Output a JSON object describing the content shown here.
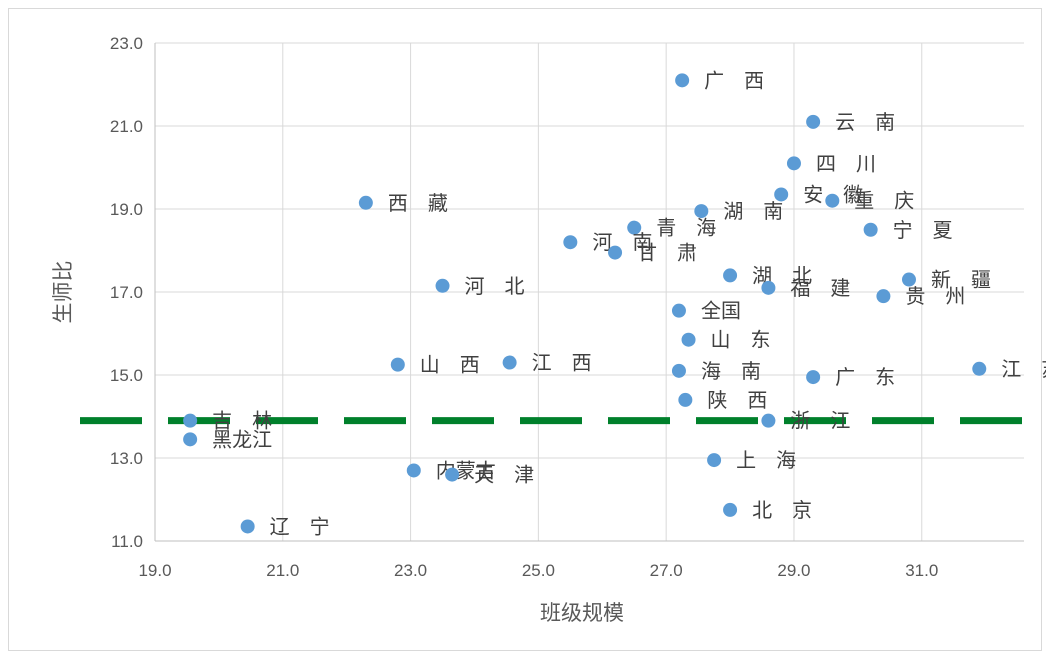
{
  "chart_data": {
    "type": "scatter",
    "xlabel": "班级规模",
    "ylabel": "生师比",
    "xlim": [
      19.0,
      32.6
    ],
    "ylim": [
      11.0,
      23.0
    ],
    "xticks": [
      19.0,
      21.0,
      23.0,
      25.0,
      27.0,
      29.0,
      31.0
    ],
    "yticks": [
      11.0,
      13.0,
      15.0,
      17.0,
      19.0,
      21.0,
      23.0
    ],
    "xtick_labels": [
      "19.0",
      "21.0",
      "23.0",
      "25.0",
      "27.0",
      "29.0",
      "31.0"
    ],
    "ytick_labels": [
      "11.0",
      "13.0",
      "15.0",
      "17.0",
      "19.0",
      "21.0",
      "23.0"
    ],
    "grid": true,
    "marker_color": "#5b9bd5",
    "reference_line": {
      "y": 13.9,
      "color": "#00802b",
      "style": "dashed"
    },
    "points": [
      {
        "label": "广　西",
        "x": 27.25,
        "y": 22.1
      },
      {
        "label": "云　南",
        "x": 29.3,
        "y": 21.1
      },
      {
        "label": "四　川",
        "x": 29.0,
        "y": 20.1
      },
      {
        "label": "安　徽",
        "x": 28.8,
        "y": 19.35
      },
      {
        "label": "重　庆",
        "x": 29.6,
        "y": 19.2
      },
      {
        "label": "西　藏",
        "x": 22.3,
        "y": 19.15
      },
      {
        "label": "湖　南",
        "x": 27.55,
        "y": 18.95
      },
      {
        "label": "青　海",
        "x": 26.5,
        "y": 18.55
      },
      {
        "label": "宁　夏",
        "x": 30.2,
        "y": 18.5
      },
      {
        "label": "河　南",
        "x": 25.5,
        "y": 18.2
      },
      {
        "label": "甘　肃",
        "x": 26.2,
        "y": 17.95
      },
      {
        "label": "湖　北",
        "x": 28.0,
        "y": 17.4
      },
      {
        "label": "新　疆",
        "x": 30.8,
        "y": 17.3
      },
      {
        "label": "河　北",
        "x": 23.5,
        "y": 17.15
      },
      {
        "label": "福　建",
        "x": 28.6,
        "y": 17.1
      },
      {
        "label": "贵　州",
        "x": 30.4,
        "y": 16.9
      },
      {
        "label": "全国",
        "x": 27.2,
        "y": 16.55
      },
      {
        "label": "山　东",
        "x": 27.35,
        "y": 15.85
      },
      {
        "label": "山　西",
        "x": 22.8,
        "y": 15.25
      },
      {
        "label": "江　西",
        "x": 24.55,
        "y": 15.3
      },
      {
        "label": "江　苏",
        "x": 31.9,
        "y": 15.15
      },
      {
        "label": "海　南",
        "x": 27.2,
        "y": 15.1
      },
      {
        "label": "广　东",
        "x": 29.3,
        "y": 14.95
      },
      {
        "label": "陕　西",
        "x": 27.3,
        "y": 14.4
      },
      {
        "label": "吉　林",
        "x": 19.55,
        "y": 13.9
      },
      {
        "label": "浙　江",
        "x": 28.6,
        "y": 13.9
      },
      {
        "label": "黑龙江",
        "x": 19.55,
        "y": 13.45
      },
      {
        "label": "上　海",
        "x": 27.75,
        "y": 12.95
      },
      {
        "label": "内蒙古",
        "x": 23.05,
        "y": 12.7
      },
      {
        "label": "天　津",
        "x": 23.65,
        "y": 12.6
      },
      {
        "label": "北　京",
        "x": 28.0,
        "y": 11.75
      },
      {
        "label": "辽　宁",
        "x": 20.45,
        "y": 11.35
      }
    ]
  }
}
